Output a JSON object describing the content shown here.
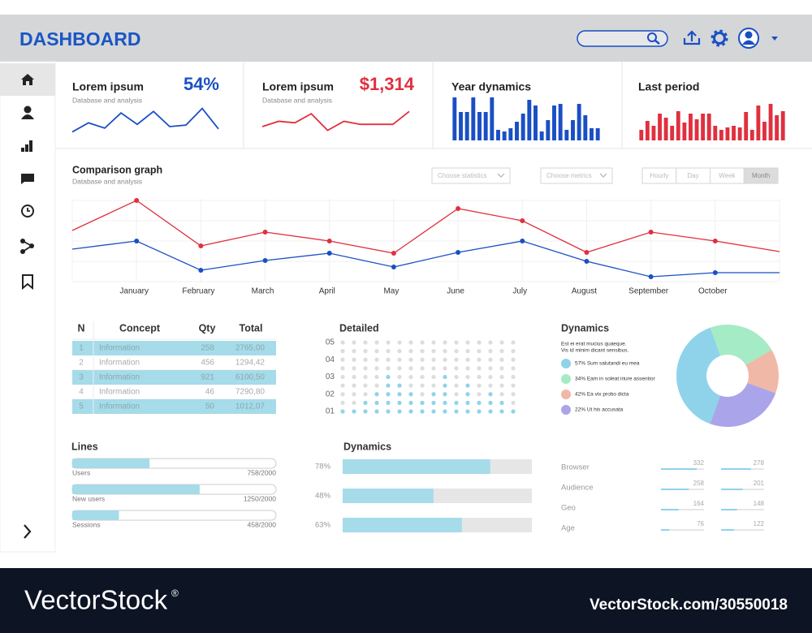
{
  "header": {
    "title": "DASHBOARD"
  },
  "kpis": [
    {
      "type": "line",
      "title": "Lorem ipsum",
      "subtitle": "Database and analysis",
      "value": "54%",
      "color": "#1a4fc4",
      "values": [
        8,
        20,
        13,
        33,
        18,
        35,
        15,
        17,
        39,
        12
      ],
      "ylim": [
        0,
        45
      ]
    },
    {
      "type": "line",
      "title": "Lorem ipsum",
      "subtitle": "Database and analysis",
      "value": "$1,314",
      "color": "#e0303f",
      "values": [
        15,
        22,
        20,
        32,
        10,
        22,
        18,
        18,
        18,
        35
      ],
      "ylim": [
        0,
        45
      ]
    },
    {
      "type": "bar",
      "title": "Year dynamics",
      "color": "#1a4fc4",
      "values": [
        53,
        35,
        35,
        53,
        35,
        35,
        53,
        13,
        11,
        15,
        23,
        33,
        50,
        43,
        11,
        25,
        43,
        45,
        13,
        25,
        45,
        31,
        15,
        15
      ],
      "ylim": [
        0,
        60
      ]
    },
    {
      "type": "bar",
      "title": "Last period",
      "color": "#e0303f",
      "values": [
        13,
        24,
        18,
        33,
        28,
        18,
        36,
        22,
        33,
        26,
        33,
        33,
        18,
        13,
        16,
        18,
        16,
        35,
        13,
        43,
        23,
        45,
        31,
        36
      ],
      "ylim": [
        0,
        60
      ]
    }
  ],
  "chart_data": {
    "type": "line",
    "title": "Comparison graph",
    "subtitle": "Database and analysis",
    "categories": [
      null,
      "January",
      "February",
      "March",
      "April",
      "May",
      "June",
      "July",
      "August",
      "September",
      "October",
      null
    ],
    "series": [
      {
        "color": "#e0303f",
        "values": [
          66,
          103,
          47,
          64,
          53,
          38,
          93,
          78,
          39,
          64,
          53,
          40
        ]
      },
      {
        "color": "#1a4fc4",
        "values": [
          43,
          53,
          17,
          29,
          38,
          21,
          39,
          53,
          28,
          9,
          14,
          14
        ]
      }
    ],
    "ylim": [
      0,
      110
    ],
    "grid": true
  },
  "filters": {
    "dropdowns": [
      "Choose statistics",
      "Choose metrics"
    ],
    "periods": [
      "Hourly",
      "Day",
      "Week",
      "Month"
    ],
    "selected_period": 3
  },
  "table": {
    "headers": [
      "N",
      "Concept",
      "Qty",
      "Total"
    ],
    "rows": [
      [
        "1",
        "Information",
        "258",
        "2765,00"
      ],
      [
        "2",
        "Information",
        "456",
        "1294,42"
      ],
      [
        "3",
        "Information",
        "921",
        "6100,50"
      ],
      [
        "4",
        "Information",
        "46",
        "7290,80"
      ],
      [
        "5",
        "Information",
        "50",
        "1012,07"
      ]
    ],
    "stripe_color": "#a6dbea"
  },
  "detailed": {
    "title": "Detailed",
    "levels": [
      "05",
      "04",
      "03",
      "02",
      "01"
    ],
    "color": "#8fd3ea",
    "values": [
      1,
      1,
      1.5,
      2,
      3,
      2.5,
      2,
      1.5,
      2,
      3,
      1.5,
      2.5,
      1.5,
      2,
      1.5,
      1
    ]
  },
  "donut": {
    "title": "Dynamics",
    "text": [
      "Est ei erat mucius quaeque.",
      "Vis id minim dicant sensibus."
    ],
    "legend": [
      {
        "label": "57% Sum salutandi eu mea",
        "color": "#8fd3ea"
      },
      {
        "label": "34% Eam in soleat iriure assentior",
        "color": "#a5ebc6"
      },
      {
        "label": "42% Ea vix probo dicta",
        "color": "#f0b8a6"
      },
      {
        "label": "22% Ut his accusata",
        "color": "#aaa4ea"
      }
    ],
    "segments": [
      {
        "color": "#8fd3ea",
        "value": 39
      },
      {
        "color": "#a5ebc6",
        "value": 22
      },
      {
        "color": "#f0b8a6",
        "value": 14
      },
      {
        "color": "#aaa4ea",
        "value": 25
      }
    ]
  },
  "lines": {
    "title": "Lines",
    "items": [
      {
        "name": "Users",
        "value": 758,
        "total": 2000,
        "label": "758/2000"
      },
      {
        "name": "New users",
        "value": 1250,
        "total": 2000,
        "label": "1250/2000"
      },
      {
        "name": "Sessions",
        "value": 458,
        "total": 2000,
        "label": "458/2000"
      }
    ]
  },
  "bars": {
    "title": "Dynamics",
    "values": [
      78,
      48,
      63
    ],
    "value_labels": [
      "78%",
      "48%",
      "63%"
    ],
    "xlim": [
      0,
      100
    ]
  },
  "stats": {
    "xlim": [
      0,
      400
    ],
    "rows": [
      {
        "name": "Browser",
        "values": [
          332,
          278
        ]
      },
      {
        "name": "Audience",
        "values": [
          258,
          201
        ]
      },
      {
        "name": "Geo",
        "values": [
          164,
          148
        ]
      },
      {
        "name": "Age",
        "values": [
          76,
          122
        ]
      }
    ]
  },
  "footer": {
    "brand": "VectorStock",
    "mark": "®",
    "id": "VectorStock.com/30550018"
  }
}
